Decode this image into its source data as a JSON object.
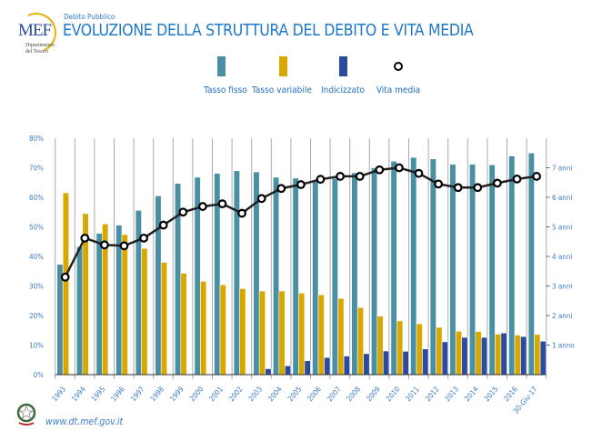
{
  "header": {
    "logo_text": "MEF",
    "logo_dept": "Dipartimento del Tesoro",
    "subtitle": "Debito Pubblico",
    "title": "EVOLUZIONE DELLA STRUTTURA DEL DEBITO E VITA MEDIA"
  },
  "colors": {
    "fisso": "#4a90a4",
    "variabile": "#d9a800",
    "indicizzato": "#2c4a9e",
    "vita": "#222222",
    "text": "#1f78c8"
  },
  "footer": {
    "url": "www.dt.mef.gov.it"
  },
  "chart_data": {
    "type": "bar+line",
    "categories": [
      "1993",
      "1994",
      "1995",
      "1996",
      "1997",
      "1998",
      "1999",
      "2000",
      "2001",
      "2002",
      "2003",
      "2004",
      "2005",
      "2006",
      "2007",
      "2008",
      "2009",
      "2010",
      "2011",
      "2012",
      "2013",
      "2014",
      "2015",
      "2016",
      "30-Giu-17"
    ],
    "left_axis": {
      "ticks": [
        "0%",
        "10%",
        "20%",
        "30%",
        "40%",
        "50%",
        "60%",
        "70%",
        "80%"
      ],
      "ylim": [
        0,
        80
      ],
      "unit": "%"
    },
    "right_axis": {
      "ticks": [
        "1 anno",
        "2 anni",
        "3 anni",
        "4 anni",
        "5 anni",
        "6 anni",
        "7 anni"
      ],
      "ylim": [
        0,
        8
      ]
    },
    "grid": "vertical",
    "legend_position": "top",
    "series": [
      {
        "name": "Tasso fisso",
        "type": "bar",
        "axis": "left",
        "color": "#4a90a4",
        "values": [
          37.3,
          43.3,
          47.8,
          50.6,
          55.6,
          60.5,
          64.7,
          66.8,
          68.1,
          69.0,
          68.6,
          66.8,
          66.5,
          65.5,
          66.4,
          68.3,
          70.0,
          72.2,
          73.5,
          73.0,
          71.2,
          71.2,
          71.0,
          74.0,
          75.0
        ]
      },
      {
        "name": "Tasso variabile",
        "type": "bar",
        "axis": "left",
        "color": "#d9a800",
        "values": [
          61.5,
          54.5,
          51.0,
          47.4,
          42.7,
          38.0,
          34.3,
          31.6,
          30.4,
          29.1,
          28.3,
          28.3,
          27.6,
          27.0,
          25.8,
          22.7,
          19.8,
          18.2,
          17.2,
          16.0,
          14.7,
          14.6,
          13.7,
          13.4,
          13.6
        ]
      },
      {
        "name": "Indicizzato",
        "type": "bar",
        "axis": "left",
        "color": "#2c4a9e",
        "values": [
          0,
          0,
          0,
          0,
          0,
          0,
          0,
          0,
          0,
          0,
          2.0,
          3.0,
          4.7,
          5.8,
          6.3,
          7.1,
          8.0,
          7.9,
          8.7,
          11.1,
          12.6,
          12.6,
          14.1,
          12.9,
          11.3
        ]
      },
      {
        "name": "Vita media",
        "type": "line",
        "axis": "right",
        "color": "#222222",
        "values": [
          3.3,
          4.62,
          4.39,
          4.36,
          4.62,
          5.06,
          5.5,
          5.69,
          5.78,
          5.46,
          5.96,
          6.3,
          6.43,
          6.61,
          6.71,
          6.71,
          6.93,
          7.0,
          6.81,
          6.45,
          6.33,
          6.33,
          6.48,
          6.62,
          6.71
        ]
      }
    ]
  }
}
